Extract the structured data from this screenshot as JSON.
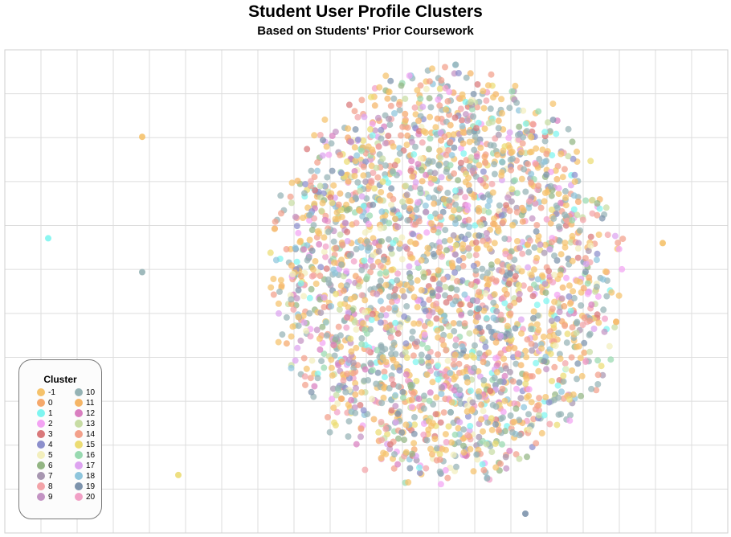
{
  "title": "Student User Profile Clusters",
  "subtitle": "Based on Students' Prior Coursework",
  "legend": {
    "title": "Cluster",
    "items": [
      {
        "label": "-1",
        "color": "#f5c26b"
      },
      {
        "label": "0",
        "color": "#f5a86b"
      },
      {
        "label": "1",
        "color": "#7ef5f0"
      },
      {
        "label": "2",
        "color": "#f3a3f3"
      },
      {
        "label": "3",
        "color": "#d9787a"
      },
      {
        "label": "4",
        "color": "#8c8fcc"
      },
      {
        "label": "5",
        "color": "#f3efbd"
      },
      {
        "label": "6",
        "color": "#93b583"
      },
      {
        "label": "7",
        "color": "#a796b0"
      },
      {
        "label": "8",
        "color": "#f3a3a8"
      },
      {
        "label": "9",
        "color": "#c393c3"
      },
      {
        "label": "10",
        "color": "#95b3b5"
      },
      {
        "label": "11",
        "color": "#f5b566"
      },
      {
        "label": "12",
        "color": "#d97fc0"
      },
      {
        "label": "13",
        "color": "#c7dca4"
      },
      {
        "label": "14",
        "color": "#f3a08a"
      },
      {
        "label": "15",
        "color": "#ecdc73"
      },
      {
        "label": "16",
        "color": "#98d9b0"
      },
      {
        "label": "17",
        "color": "#dda3f0"
      },
      {
        "label": "18",
        "color": "#8ec5dc"
      },
      {
        "label": "19",
        "color": "#7d93ac"
      },
      {
        "label": "20",
        "color": "#f1a0c6"
      }
    ]
  },
  "chart_data": {
    "type": "scatter",
    "title": "Student User Profile Clusters",
    "subtitle": "Based on Students' Prior Coursework",
    "xlabel": "",
    "ylabel": "",
    "xlim": [
      0,
      100
    ],
    "ylim": [
      0,
      100
    ],
    "grid": true,
    "axis_ticks_labeled": false,
    "legend_placement": "bottom-left",
    "series": [
      {
        "name": "-1",
        "color": "#f5c26b",
        "points": [
          [
            19,
            82
          ],
          [
            91,
            60
          ]
        ]
      },
      {
        "name": "1",
        "color": "#7ef5f0",
        "points": [
          [
            6,
            61
          ]
        ]
      },
      {
        "name": "10",
        "color": "#95b3b5",
        "points": [
          [
            19,
            54
          ]
        ]
      },
      {
        "name": "15",
        "color": "#ecdc73",
        "points": [
          [
            24,
            12
          ]
        ]
      },
      {
        "name": "19",
        "color": "#7d93ac",
        "points": [
          [
            72,
            4
          ]
        ]
      }
    ],
    "main_cluster": {
      "description_only": false,
      "center": [
        61,
        50
      ],
      "spread_x": [
        36,
        86
      ],
      "spread_y": [
        8,
        98
      ],
      "approx_point_count": 2600,
      "clusters_present": [
        "-1",
        "0",
        "1",
        "2",
        "3",
        "4",
        "5",
        "6",
        "7",
        "8",
        "9",
        "10",
        "11",
        "12",
        "13",
        "14",
        "15",
        "16",
        "17",
        "18",
        "19",
        "20"
      ]
    }
  }
}
